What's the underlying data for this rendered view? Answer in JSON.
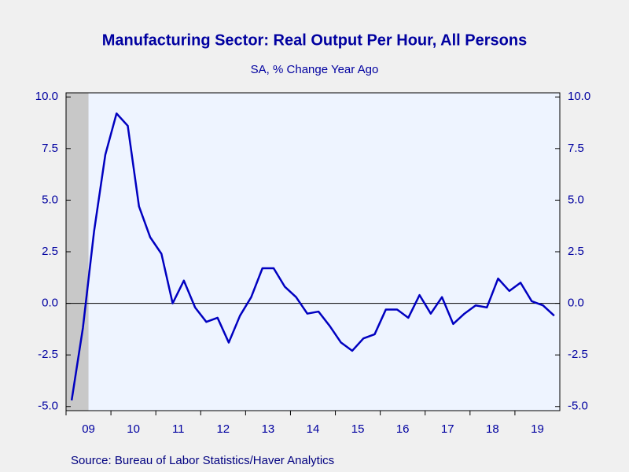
{
  "chart_data": {
    "type": "line",
    "title": "Manufacturing Sector: Real Output Per Hour, All Persons",
    "subtitle": "SA, % Change   Year Ago",
    "source": "Source:  Bureau of Labor Statistics/Haver Analytics",
    "categories": [
      "09",
      null,
      null,
      null,
      "10",
      null,
      null,
      null,
      "11",
      null,
      null,
      null,
      "12",
      null,
      null,
      null,
      "13",
      null,
      null,
      null,
      "14",
      null,
      null,
      null,
      "15",
      null,
      null,
      null,
      "16",
      null,
      null,
      null,
      "17",
      null,
      null,
      null,
      "18",
      null,
      null,
      null,
      "19",
      null,
      null,
      null
    ],
    "series": [
      {
        "color": "#0000c0",
        "values": [
          -4.7,
          -1.2,
          3.5,
          7.2,
          9.2,
          8.6,
          4.7,
          3.2,
          2.4,
          0.0,
          1.1,
          -0.2,
          -0.9,
          -0.7,
          -1.9,
          -0.6,
          0.3,
          1.7,
          1.7,
          0.8,
          0.3,
          -0.5,
          -0.4,
          -1.1,
          -1.9,
          -2.3,
          -1.7,
          -1.5,
          -0.3,
          -0.3,
          -0.7,
          0.4,
          -0.5,
          0.3,
          -1.0,
          -0.5,
          -0.1,
          -0.2,
          1.2,
          0.6,
          1.0,
          0.1,
          -0.1,
          -0.6
        ]
      }
    ],
    "recession_categories": [
      0,
      1
    ],
    "ylim": [
      -5.2,
      10.2
    ],
    "yticks": [
      {
        "value": -5,
        "label": "-5.0"
      },
      -2.5,
      {
        "value": 0,
        "label": "0.0"
      },
      2.5,
      {
        "value": 5,
        "label": "5.0"
      },
      7.5,
      {
        "value": 10,
        "label": "10.0"
      }
    ],
    "y2lim": [
      -5.2,
      10.2
    ],
    "y2ticks": [
      {
        "value": -5,
        "label": "-5.0"
      },
      -2.5,
      {
        "value": 0,
        "label": "0.0"
      },
      2.5,
      {
        "value": 5,
        "label": "5.0"
      },
      7.5,
      {
        "value": 10,
        "label": "10.0"
      }
    ]
  }
}
